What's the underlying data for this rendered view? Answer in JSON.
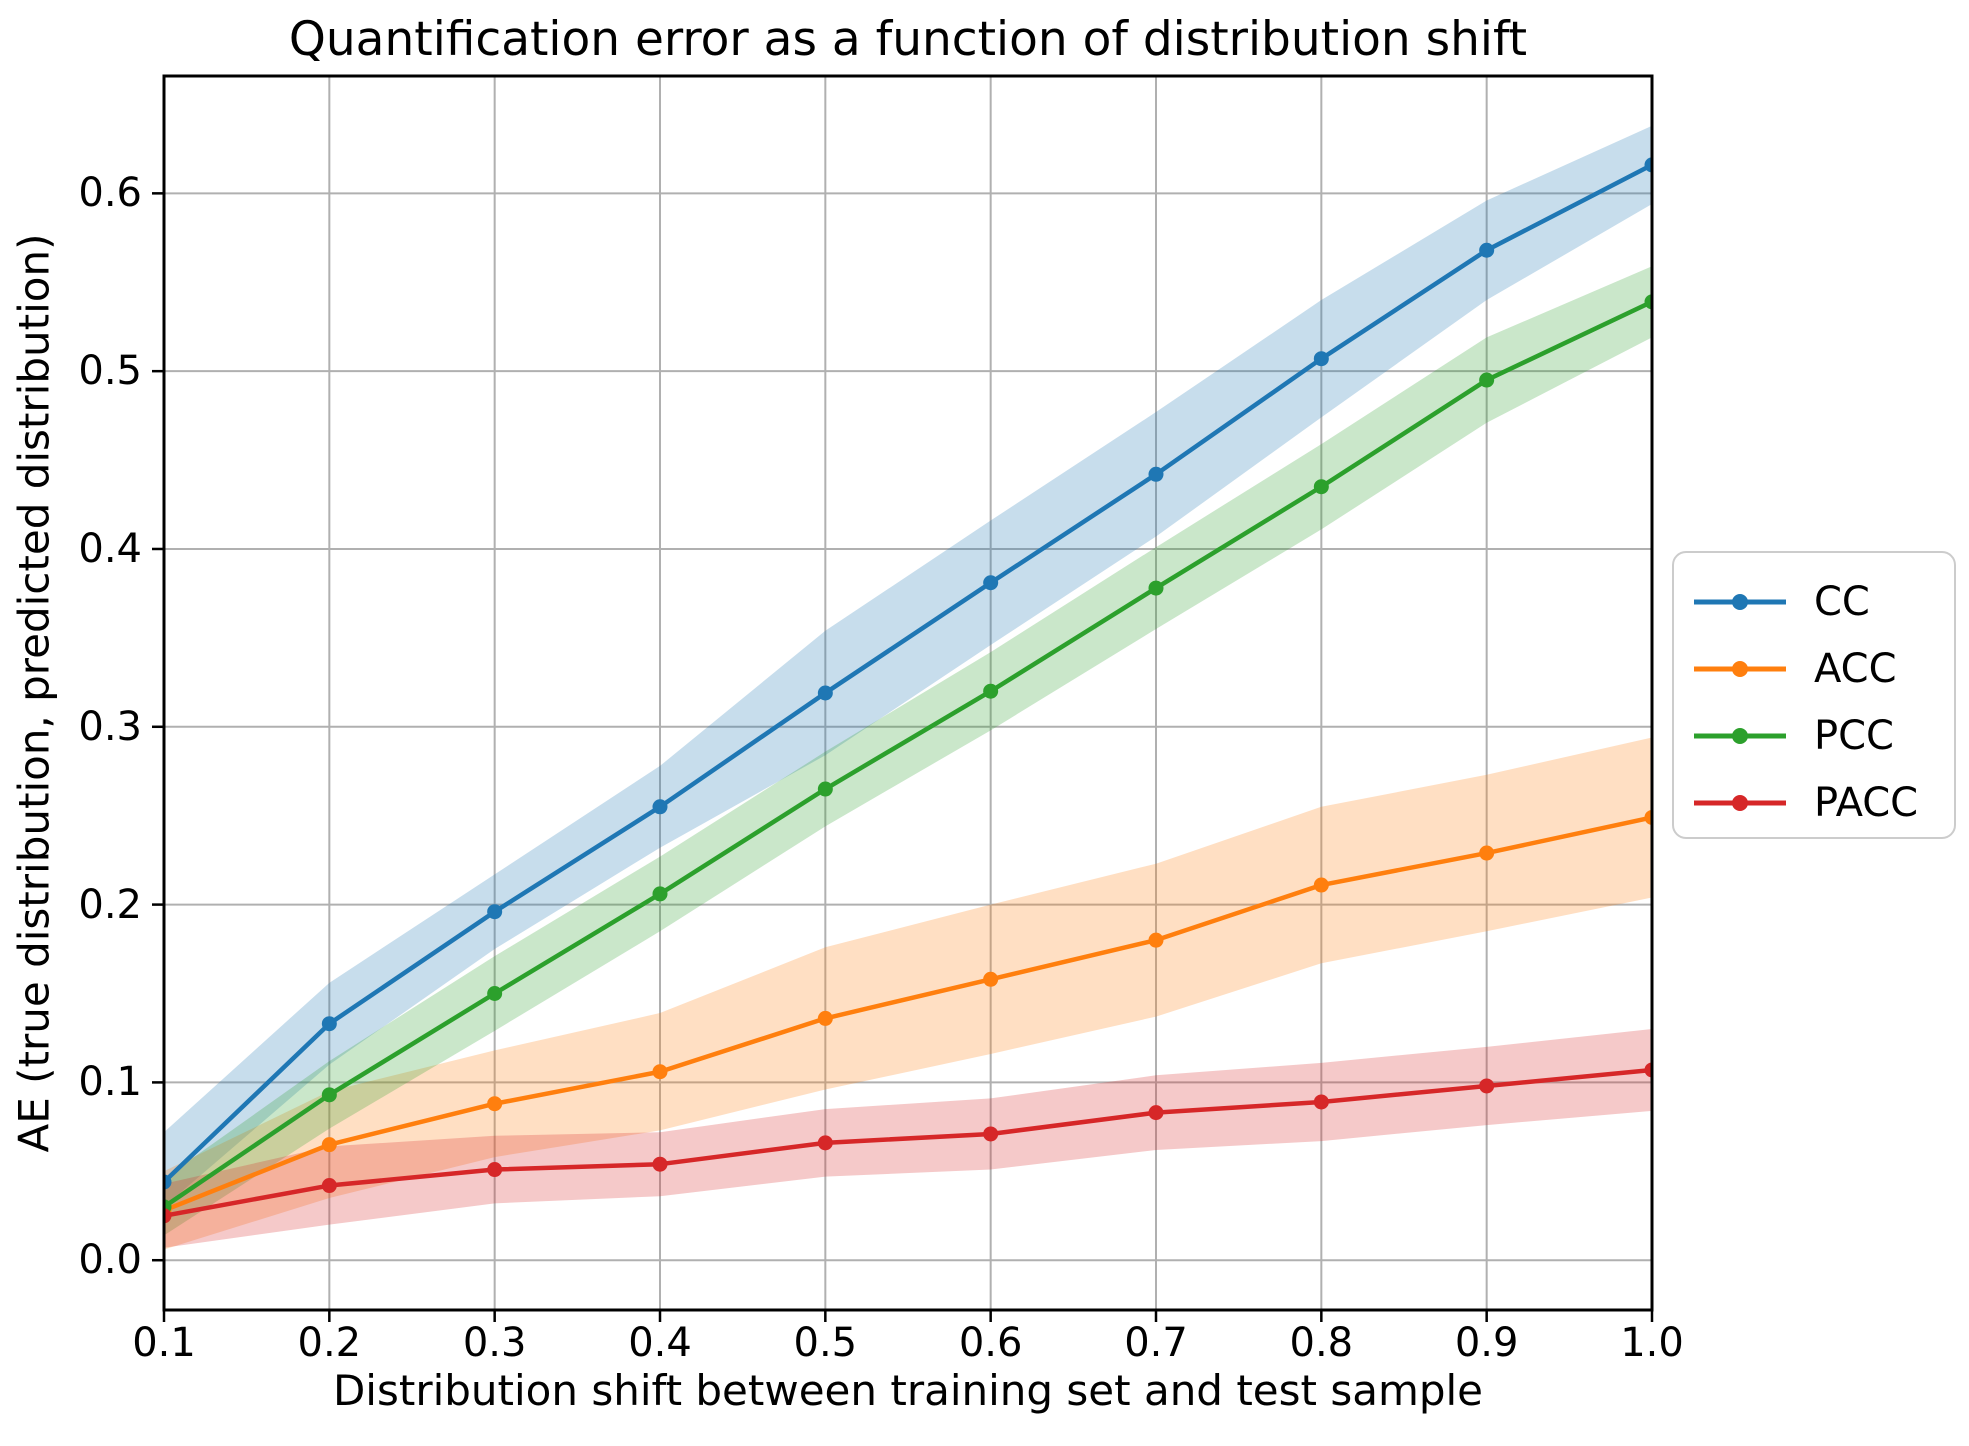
{
  "chart_data": {
    "type": "line",
    "title": "Quantification error as a function of distribution shift",
    "xlabel": "Distribution shift between training set and test sample",
    "ylabel": "AE (true distribution, predicted distribution)",
    "x": [
      0.1,
      0.2,
      0.3,
      0.4,
      0.5,
      0.6,
      0.7,
      0.8,
      0.9,
      1.0
    ],
    "xlim": [
      0.1,
      1.0
    ],
    "ylim": [
      -0.028,
      0.666
    ],
    "x_tick_labels": [
      "0.1",
      "0.2",
      "0.3",
      "0.4",
      "0.5",
      "0.6",
      "0.7",
      "0.8",
      "0.9",
      "1.0"
    ],
    "x_tick_values": [
      0.1,
      0.2,
      0.3,
      0.4,
      0.5,
      0.6,
      0.7,
      0.8,
      0.9,
      1.0
    ],
    "y_tick_labels": [
      "0.0",
      "0.1",
      "0.2",
      "0.3",
      "0.4",
      "0.5",
      "0.6"
    ],
    "y_tick_values": [
      0.0,
      0.1,
      0.2,
      0.3,
      0.4,
      0.5,
      0.6
    ],
    "grid": true,
    "grid_color": "#b0b0b0",
    "spine_color": "#000000",
    "band_opacity": 0.25,
    "legend_position": "right of axes, vertically centered",
    "series": [
      {
        "name": "CC",
        "color": "#1f77b4",
        "values": [
          0.044,
          0.133,
          0.196,
          0.255,
          0.319,
          0.381,
          0.442,
          0.507,
          0.568,
          0.616
        ],
        "band_lower": [
          0.03,
          0.11,
          0.175,
          0.232,
          0.284,
          0.346,
          0.407,
          0.474,
          0.54,
          0.594
        ],
        "band_upper": [
          0.072,
          0.156,
          0.217,
          0.278,
          0.354,
          0.416,
          0.477,
          0.54,
          0.596,
          0.638
        ]
      },
      {
        "name": "ACC",
        "color": "#ff7f0e",
        "values": [
          0.028,
          0.065,
          0.088,
          0.106,
          0.136,
          0.158,
          0.18,
          0.211,
          0.229,
          0.249
        ],
        "band_lower": [
          0.006,
          0.035,
          0.058,
          0.073,
          0.096,
          0.116,
          0.137,
          0.167,
          0.185,
          0.204
        ],
        "band_upper": [
          0.05,
          0.095,
          0.118,
          0.139,
          0.176,
          0.2,
          0.223,
          0.255,
          0.273,
          0.294
        ]
      },
      {
        "name": "PCC",
        "color": "#2ca02c",
        "values": [
          0.03,
          0.093,
          0.15,
          0.206,
          0.265,
          0.32,
          0.378,
          0.435,
          0.495,
          0.539
        ],
        "band_lower": [
          0.014,
          0.074,
          0.129,
          0.185,
          0.244,
          0.298,
          0.355,
          0.411,
          0.471,
          0.519
        ],
        "band_upper": [
          0.046,
          0.112,
          0.171,
          0.227,
          0.286,
          0.342,
          0.401,
          0.459,
          0.519,
          0.559
        ]
      },
      {
        "name": "PACC",
        "color": "#d62728",
        "values": [
          0.025,
          0.042,
          0.051,
          0.054,
          0.066,
          0.071,
          0.083,
          0.089,
          0.098,
          0.107
        ],
        "band_lower": [
          0.007,
          0.02,
          0.032,
          0.036,
          0.047,
          0.051,
          0.062,
          0.067,
          0.076,
          0.084
        ],
        "band_upper": [
          0.043,
          0.064,
          0.07,
          0.072,
          0.085,
          0.091,
          0.104,
          0.111,
          0.12,
          0.13
        ]
      }
    ]
  },
  "legend": {
    "entries": [
      {
        "label": "CC",
        "color": "#1f77b4"
      },
      {
        "label": "ACC",
        "color": "#ff7f0e"
      },
      {
        "label": "PCC",
        "color": "#2ca02c"
      },
      {
        "label": "PACC",
        "color": "#d62728"
      }
    ]
  }
}
